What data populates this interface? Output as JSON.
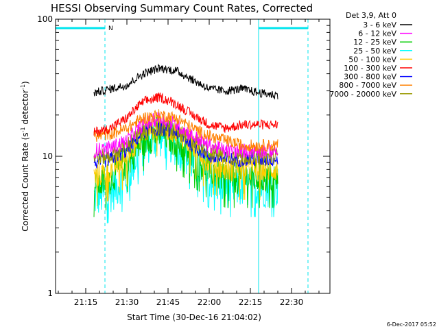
{
  "chart_data": {
    "type": "line",
    "title": "HESSI Observing Summary Count Rates, Corrected",
    "xlabel": "Start Time (30-Dec-16 21:04:02)",
    "ylabel_main": "Corrected Count Rate (s",
    "ylabel_sup1": "-1",
    "ylabel_mid": " detector",
    "ylabel_sup2": "-1",
    "ylabel_end": ")",
    "y_scale": "log",
    "ylim": [
      1,
      100
    ],
    "xlim": [
      "21:04",
      "22:44"
    ],
    "x_tick_labels": [
      "21:15",
      "21:30",
      "21:45",
      "22:00",
      "22:15",
      "22:30"
    ],
    "y_tick_labels": [
      "1",
      "10",
      "100"
    ],
    "data_start": "21:18",
    "data_end": "22:25",
    "legend_header": "Det 3,9, Att 0",
    "flag_label": "N",
    "night_intervals": [
      [
        "21:04",
        "21:22"
      ],
      [
        "22:18",
        "22:36"
      ]
    ],
    "series": [
      {
        "name": "3 - 6 keV",
        "color": "#000000",
        "values": [
          29,
          31,
          33,
          40,
          44,
          42,
          36,
          31,
          30,
          31,
          29,
          28
        ]
      },
      {
        "name": "6 - 12 keV",
        "color": "#ff00ff",
        "values": [
          11,
          11.5,
          13,
          17,
          19,
          17,
          14,
          12,
          11,
          11,
          11,
          11
        ]
      },
      {
        "name": "12 - 25 keV",
        "color": "#00cc00",
        "values": [
          6,
          7,
          9,
          13,
          15,
          13,
          10,
          8,
          7,
          7,
          7,
          7
        ]
      },
      {
        "name": "25 - 50 keV",
        "color": "#00ffff",
        "values": [
          5,
          5.5,
          7,
          12,
          14,
          12,
          9,
          7,
          6,
          6,
          6,
          6
        ]
      },
      {
        "name": "50 - 100 keV",
        "color": "#ffcc00",
        "values": [
          7,
          8,
          10,
          15,
          17,
          15,
          12,
          9,
          8,
          8,
          8,
          8
        ]
      },
      {
        "name": "100 - 300 keV",
        "color": "#ff0000",
        "values": [
          15,
          16,
          19,
          25,
          27,
          24,
          20,
          17,
          16,
          17,
          17,
          17
        ]
      },
      {
        "name": "300 - 800 keV",
        "color": "#0000ff",
        "values": [
          9,
          9.5,
          11,
          15,
          16,
          15,
          12,
          10,
          9.5,
          9.5,
          9.5,
          9.5
        ]
      },
      {
        "name": "800 - 7000 keV",
        "color": "#ff8000",
        "values": [
          14,
          14.5,
          16,
          19,
          20,
          19,
          16,
          14,
          13,
          12,
          12,
          12
        ]
      },
      {
        "name": "7000 - 20000 keV",
        "color": "#999900",
        "values": [
          10,
          10,
          12,
          15,
          16,
          15,
          13,
          11,
          10,
          10,
          10,
          10
        ]
      }
    ],
    "x": [
      "21:18",
      "21:24",
      "21:30",
      "21:36",
      "21:42",
      "21:48",
      "21:54",
      "22:00",
      "22:06",
      "22:12",
      "22:18",
      "22:24"
    ],
    "timestamp": "6-Dec-2017 05:52"
  }
}
